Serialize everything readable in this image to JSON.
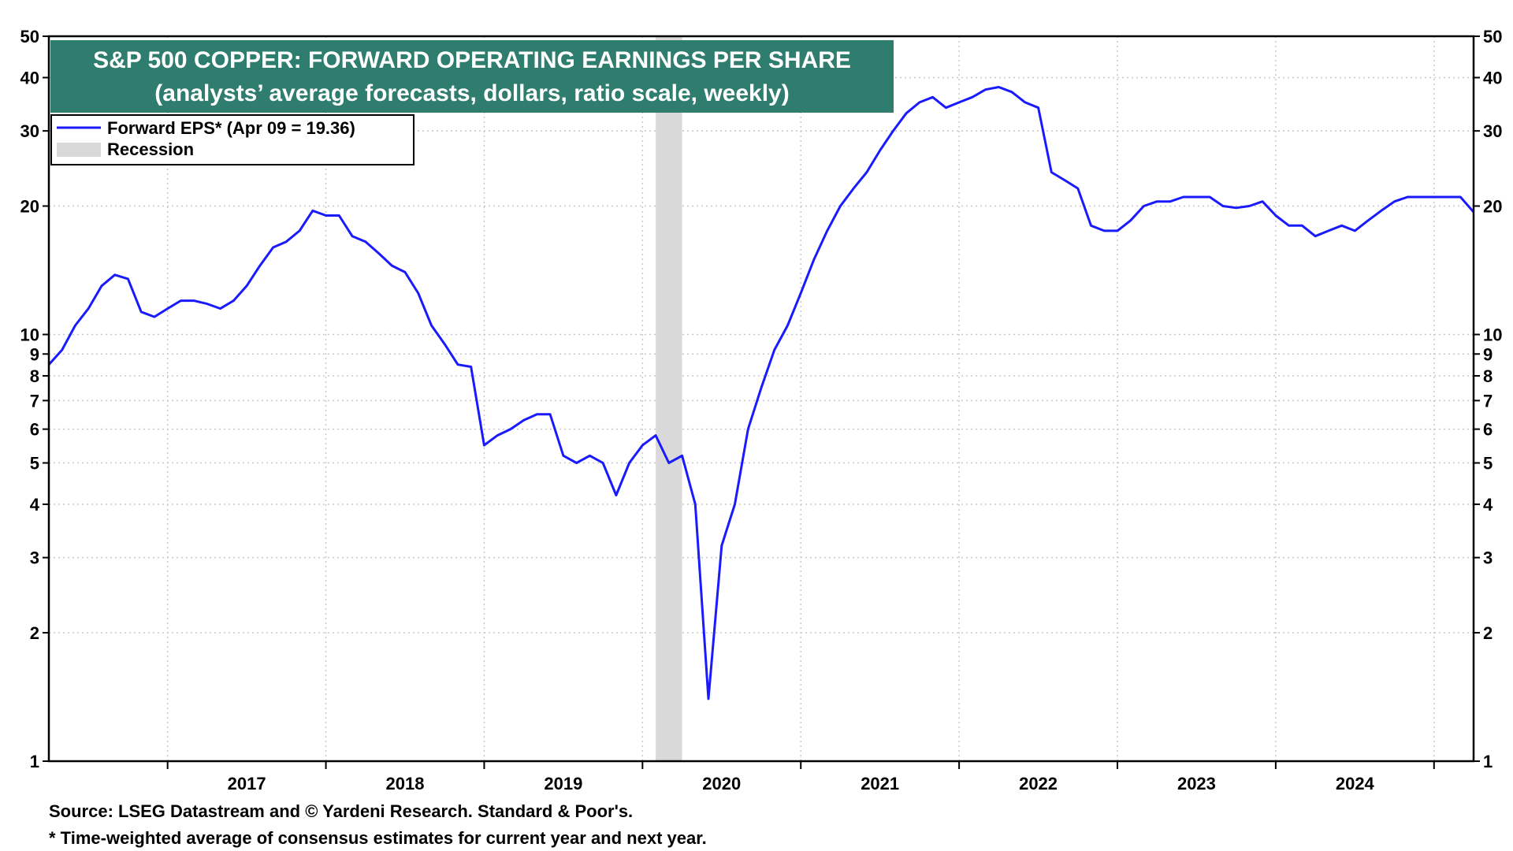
{
  "chart_data": {
    "type": "line",
    "title": "S&P 500 COPPER: FORWARD OPERATING EARNINGS PER SHARE",
    "subtitle": "(analysts’ average forecasts, dollars, ratio scale, weekly)",
    "yscale": "log",
    "ylim": [
      1,
      50
    ],
    "yticks": [
      1,
      2,
      3,
      4,
      5,
      6,
      7,
      8,
      9,
      10,
      20,
      30,
      40,
      50
    ],
    "ytick_labels": [
      "1",
      "2",
      "3",
      "4",
      "5",
      "6",
      "7",
      "8",
      "9",
      "10",
      "20",
      "30",
      "40",
      "50"
    ],
    "xlim": [
      "2016-04",
      "2025-04"
    ],
    "x_tick_labels": [
      "2017",
      "2018",
      "2019",
      "2020",
      "2021",
      "2022",
      "2023",
      "2024"
    ],
    "grid": true,
    "legend_position": "top-left",
    "legend": [
      {
        "label": "Forward EPS* (Apr 09 = 19.36)",
        "color": "#1a1aff",
        "kind": "line"
      },
      {
        "label": "Recession",
        "color": "#d9d9d9",
        "kind": "band"
      }
    ],
    "recession": {
      "start": "2020-02",
      "end": "2020-04"
    },
    "series": [
      {
        "name": "Forward EPS*",
        "color": "#1a1aff",
        "points": [
          [
            "2016-04",
            8.5
          ],
          [
            "2016-05",
            9.2
          ],
          [
            "2016-06",
            10.5
          ],
          [
            "2016-07",
            11.5
          ],
          [
            "2016-08",
            13.0
          ],
          [
            "2016-09",
            13.8
          ],
          [
            "2016-10",
            13.5
          ],
          [
            "2016-11",
            11.3
          ],
          [
            "2016-12",
            11.0
          ],
          [
            "2017-01",
            11.5
          ],
          [
            "2017-02",
            12.0
          ],
          [
            "2017-03",
            12.0
          ],
          [
            "2017-04",
            11.8
          ],
          [
            "2017-05",
            11.5
          ],
          [
            "2017-06",
            12.0
          ],
          [
            "2017-07",
            13.0
          ],
          [
            "2017-08",
            14.5
          ],
          [
            "2017-09",
            16.0
          ],
          [
            "2017-10",
            16.5
          ],
          [
            "2017-11",
            17.5
          ],
          [
            "2017-12",
            19.5
          ],
          [
            "2018-01",
            19.0
          ],
          [
            "2018-02",
            19.0
          ],
          [
            "2018-03",
            17.0
          ],
          [
            "2018-04",
            16.5
          ],
          [
            "2018-05",
            15.5
          ],
          [
            "2018-06",
            14.5
          ],
          [
            "2018-07",
            14.0
          ],
          [
            "2018-08",
            12.5
          ],
          [
            "2018-09",
            10.5
          ],
          [
            "2018-10",
            9.5
          ],
          [
            "2018-11",
            8.5
          ],
          [
            "2018-12",
            8.4
          ],
          [
            "2019-01",
            5.5
          ],
          [
            "2019-02",
            5.8
          ],
          [
            "2019-03",
            6.0
          ],
          [
            "2019-04",
            6.3
          ],
          [
            "2019-05",
            6.5
          ],
          [
            "2019-06",
            6.5
          ],
          [
            "2019-07",
            5.2
          ],
          [
            "2019-08",
            5.0
          ],
          [
            "2019-09",
            5.2
          ],
          [
            "2019-10",
            5.0
          ],
          [
            "2019-11",
            4.2
          ],
          [
            "2019-12",
            5.0
          ],
          [
            "2020-01",
            5.5
          ],
          [
            "2020-02",
            5.8
          ],
          [
            "2020-03",
            5.0
          ],
          [
            "2020-04",
            5.2
          ],
          [
            "2020-05",
            4.0
          ],
          [
            "2020-06",
            1.4
          ],
          [
            "2020-07",
            3.2
          ],
          [
            "2020-08",
            4.0
          ],
          [
            "2020-09",
            6.0
          ],
          [
            "2020-10",
            7.5
          ],
          [
            "2020-11",
            9.2
          ],
          [
            "2020-12",
            10.5
          ],
          [
            "2021-01",
            12.5
          ],
          [
            "2021-02",
            15.0
          ],
          [
            "2021-03",
            17.5
          ],
          [
            "2021-04",
            20.0
          ],
          [
            "2021-05",
            22.0
          ],
          [
            "2021-06",
            24.0
          ],
          [
            "2021-07",
            27.0
          ],
          [
            "2021-08",
            30.0
          ],
          [
            "2021-09",
            33.0
          ],
          [
            "2021-10",
            35.0
          ],
          [
            "2021-11",
            36.0
          ],
          [
            "2021-12",
            34.0
          ],
          [
            "2022-01",
            35.0
          ],
          [
            "2022-02",
            36.0
          ],
          [
            "2022-03",
            37.5
          ],
          [
            "2022-04",
            38.0
          ],
          [
            "2022-05",
            37.0
          ],
          [
            "2022-06",
            35.0
          ],
          [
            "2022-07",
            34.0
          ],
          [
            "2022-08",
            24.0
          ],
          [
            "2022-09",
            23.0
          ],
          [
            "2022-10",
            22.0
          ],
          [
            "2022-11",
            18.0
          ],
          [
            "2022-12",
            17.5
          ],
          [
            "2023-01",
            17.5
          ],
          [
            "2023-02",
            18.5
          ],
          [
            "2023-03",
            20.0
          ],
          [
            "2023-04",
            20.5
          ],
          [
            "2023-05",
            20.5
          ],
          [
            "2023-06",
            21.0
          ],
          [
            "2023-07",
            21.0
          ],
          [
            "2023-08",
            21.0
          ],
          [
            "2023-09",
            20.0
          ],
          [
            "2023-10",
            19.8
          ],
          [
            "2023-11",
            20.0
          ],
          [
            "2023-12",
            20.5
          ],
          [
            "2024-01",
            19.0
          ],
          [
            "2024-02",
            18.0
          ],
          [
            "2024-03",
            18.0
          ],
          [
            "2024-04",
            17.0
          ],
          [
            "2024-05",
            17.5
          ],
          [
            "2024-06",
            18.0
          ],
          [
            "2024-07",
            17.5
          ],
          [
            "2024-08",
            18.5
          ],
          [
            "2024-09",
            19.5
          ],
          [
            "2024-10",
            20.5
          ],
          [
            "2024-11",
            21.0
          ],
          [
            "2024-12",
            21.0
          ],
          [
            "2025-01",
            21.0
          ],
          [
            "2025-02",
            21.0
          ],
          [
            "2025-03",
            21.0
          ],
          [
            "2025-04",
            19.36
          ]
        ]
      }
    ]
  },
  "footnotes": {
    "source": "Source: LSEG Datastream and © Yardeni Research. Standard & Poor's.",
    "note": "* Time-weighted average of consensus estimates for current year and next year."
  }
}
